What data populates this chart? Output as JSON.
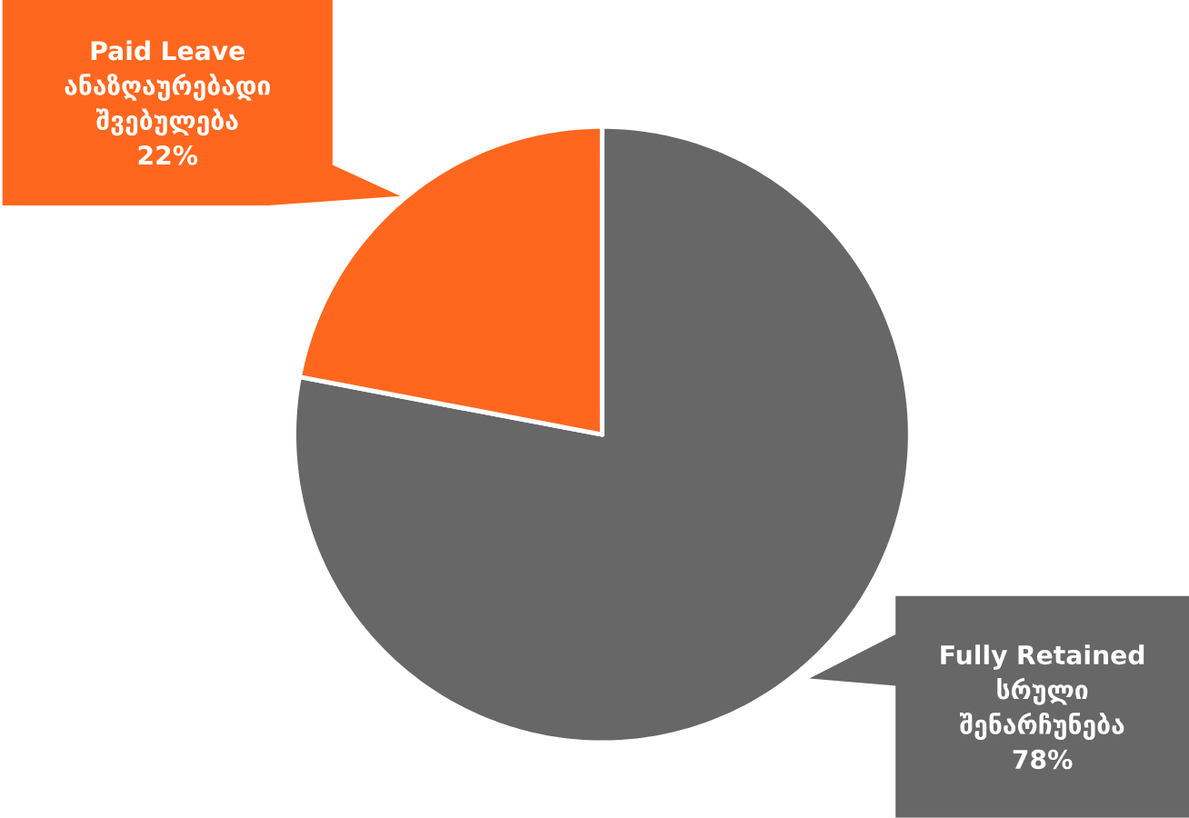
{
  "chart_data": {
    "type": "pie",
    "categories": [
      "Fully Retained სრული შენარჩუნება",
      "Paid Leave ანაზღაურებადი შვებულება"
    ],
    "values": [
      78,
      22
    ],
    "colors": [
      "#676767",
      "#ff671f"
    ],
    "value_labels": [
      "78%",
      "22%"
    ]
  }
}
